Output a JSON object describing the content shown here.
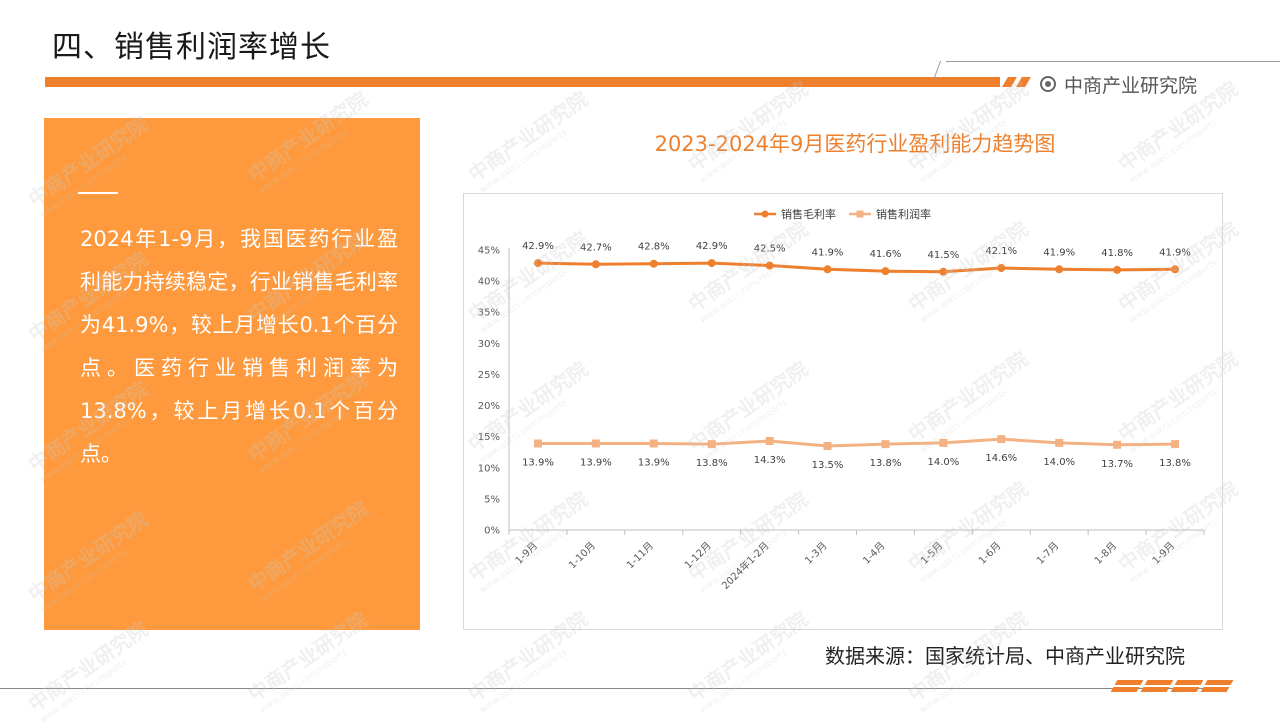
{
  "header": {
    "title": "四、销售利润率增长",
    "brand": "中商产业研究院"
  },
  "side_panel": {
    "text": "2024年1-9月，我国医药行业盈利能力持续稳定，行业销售毛利率为41.9%，较上月增长0.1个百分点。医药行业销售利润率为13.8%，较上月增长0.1个百分点。"
  },
  "footer": {
    "source": "数据来源：国家统计局、中商产业研究院"
  },
  "watermark": {
    "name": "中商产业研究院",
    "url": "www.askci.com/reports"
  },
  "colors": {
    "accent": "#ee7f2d",
    "panel": "#fe9a3d",
    "series1": "#ee7f2d",
    "series2": "#f4b183"
  },
  "chart_data": {
    "type": "line",
    "title": "2023-2024年9月医药行业盈利能力趋势图",
    "categories": [
      "1-9月",
      "1-10月",
      "1-11月",
      "1-12月",
      "2024年1-2月",
      "1-3月",
      "1-4月",
      "1-5月",
      "1-6月",
      "1-7月",
      "1-8月",
      "1-9月"
    ],
    "series": [
      {
        "name": "销售毛利率",
        "values": [
          42.9,
          42.7,
          42.8,
          42.9,
          42.5,
          41.9,
          41.6,
          41.5,
          42.1,
          41.9,
          41.8,
          41.9
        ],
        "marker": "circle"
      },
      {
        "name": "销售利润率",
        "values": [
          13.9,
          13.9,
          13.9,
          13.8,
          14.3,
          13.5,
          13.8,
          14.0,
          14.6,
          14.0,
          13.7,
          13.8
        ],
        "marker": "square"
      }
    ],
    "yticks": [
      "0%",
      "5%",
      "10%",
      "15%",
      "20%",
      "25%",
      "30%",
      "35%",
      "40%",
      "45%"
    ],
    "ylim": [
      0,
      45
    ],
    "data_labels": [
      [
        "42.9%",
        "42.7%",
        "42.8%",
        "42.9%",
        "42.5%",
        "41.9%",
        "41.6%",
        "41.5%",
        "42.1%",
        "41.9%",
        "41.8%",
        "41.9%"
      ],
      [
        "13.9%",
        "13.9%",
        "13.9%",
        "13.8%",
        "14.3%",
        "13.5%",
        "13.8%",
        "14.0%",
        "14.6%",
        "14.0%",
        "13.7%",
        "13.8%"
      ]
    ],
    "legend": "top",
    "grid": false
  }
}
